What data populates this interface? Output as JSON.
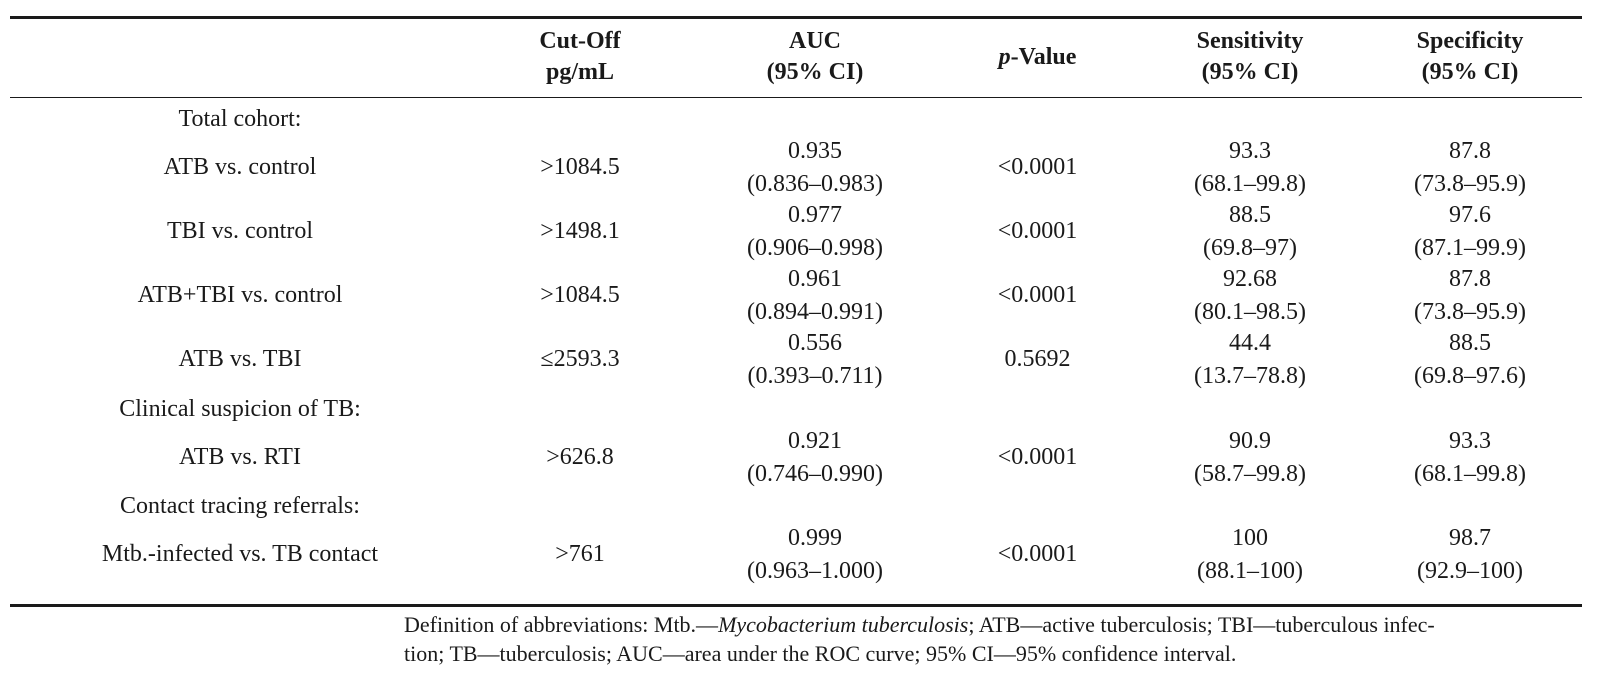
{
  "table": {
    "headers": {
      "cutoff": [
        "Cut-Off",
        "pg/mL"
      ],
      "auc": [
        "AUC",
        "(95% CI)"
      ],
      "pvalue_italic": "p",
      "pvalue_rest": "-Value",
      "sensitivity": [
        "Sensitivity",
        "(95% CI)"
      ],
      "specificity": [
        "Specificity",
        "(95% CI)"
      ]
    },
    "sections": {
      "total": "Total cohort:",
      "clinical": "Clinical suspicion of TB:",
      "contact": "Contact tracing referrals:"
    },
    "rows": [
      {
        "label": "ATB vs. control",
        "cutoff": ">1084.5",
        "auc": "0.935",
        "auc_ci": "(0.836–0.983)",
        "p": "<0.0001",
        "sens": "93.3",
        "sens_ci": "(68.1–99.8)",
        "spec": "87.8",
        "spec_ci": "(73.8–95.9)"
      },
      {
        "label": "TBI vs. control",
        "cutoff": ">1498.1",
        "auc": "0.977",
        "auc_ci": "(0.906–0.998)",
        "p": "<0.0001",
        "sens": "88.5",
        "sens_ci": "(69.8–97)",
        "spec": "97.6",
        "spec_ci": "(87.1–99.9)"
      },
      {
        "label": "ATB+TBI vs. control",
        "cutoff": ">1084.5",
        "auc": "0.961",
        "auc_ci": "(0.894–0.991)",
        "p": "<0.0001",
        "sens": "92.68",
        "sens_ci": "(80.1–98.5)",
        "spec": "87.8",
        "spec_ci": "(73.8–95.9)"
      },
      {
        "label": "ATB vs. TBI",
        "cutoff": "≤2593.3",
        "auc": "0.556",
        "auc_ci": "(0.393–0.711)",
        "p": "0.5692",
        "sens": "44.4",
        "sens_ci": "(13.7–78.8)",
        "spec": "88.5",
        "spec_ci": "(69.8–97.6)"
      },
      {
        "label": "ATB vs. RTI",
        "cutoff": ">626.8",
        "auc": "0.921",
        "auc_ci": "(0.746–0.990)",
        "p": "<0.0001",
        "sens": "90.9",
        "sens_ci": "(58.7–99.8)",
        "spec": "93.3",
        "spec_ci": "(68.1–99.8)"
      },
      {
        "label": "Mtb.-infected vs. TB contact",
        "cutoff": ">761",
        "auc": "0.999",
        "auc_ci": "(0.963–1.000)",
        "p": "<0.0001",
        "sens": "100",
        "sens_ci": "(88.1–100)",
        "spec": "98.7",
        "spec_ci": "(92.9–100)"
      }
    ]
  },
  "footnote": {
    "line1_prefix": "Definition of abbreviations: Mtb.—",
    "line1_italic": "Mycobacterium tuberculosis",
    "line1_suffix": "; ATB—active tuberculosis; TBI—tuberculous infec-",
    "line2": "tion; TB—tuberculosis; AUC—area under the ROC curve; 95% CI—95% confidence interval."
  }
}
